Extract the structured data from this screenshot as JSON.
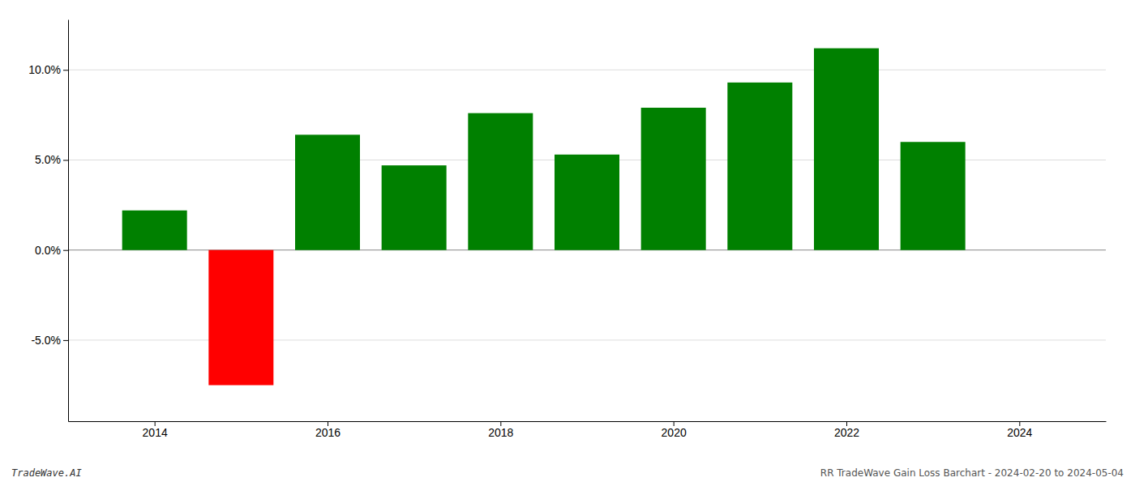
{
  "chart_data": {
    "type": "bar",
    "x": [
      2014,
      2015,
      2016,
      2017,
      2018,
      2019,
      2020,
      2021,
      2022,
      2023
    ],
    "values": [
      0.022,
      -0.075,
      0.064,
      0.047,
      0.076,
      0.053,
      0.079,
      0.093,
      0.112,
      0.06
    ],
    "colors": [
      "#008000",
      "#ff0000",
      "#008000",
      "#008000",
      "#008000",
      "#008000",
      "#008000",
      "#008000",
      "#008000",
      "#008000"
    ],
    "ylim": [
      -0.095,
      0.128
    ],
    "yticks": [
      {
        "value": -0.05,
        "label": "-5.0%"
      },
      {
        "value": 0.0,
        "label": "0.0%"
      },
      {
        "value": 0.05,
        "label": "5.0%"
      },
      {
        "value": 0.1,
        "label": "10.0%"
      }
    ],
    "xlim": [
      2013.0,
      2025.0
    ],
    "xticks": [
      2014,
      2016,
      2018,
      2020,
      2022,
      2024
    ],
    "grid": true,
    "annotations": [
      "TradeWave.AI",
      "RR TradeWave Gain Loss Barchart - 2024-02-20 to 2024-05-04"
    ]
  }
}
